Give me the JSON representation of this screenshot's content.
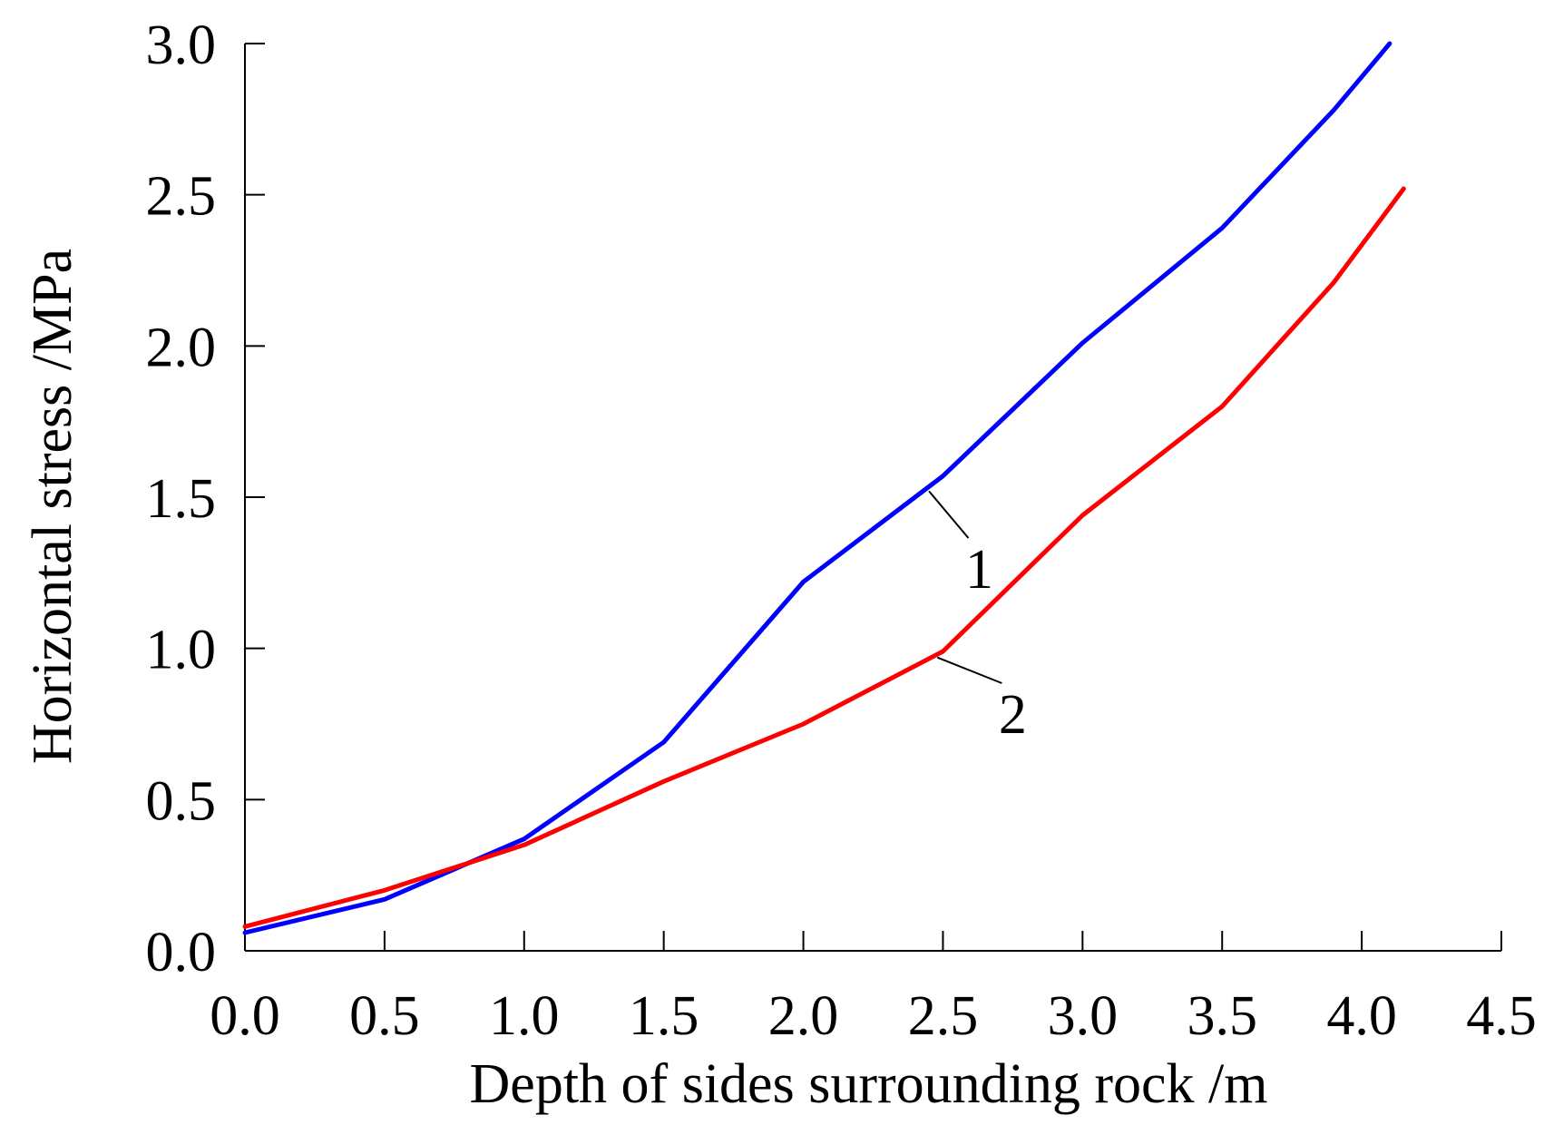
{
  "chart_data": {
    "type": "line",
    "xlabel": "Depth of sides surrounding rock /m",
    "ylabel": "Horizontal stress /MPa",
    "xlim": [
      0,
      4.5
    ],
    "ylim": [
      0,
      3.0
    ],
    "xticks": [
      "0.0",
      "0.5",
      "1.0",
      "1.5",
      "2.0",
      "2.5",
      "3.0",
      "3.5",
      "4.0",
      "4.5"
    ],
    "yticks": [
      "0.0",
      "0.5",
      "1.0",
      "1.5",
      "2.0",
      "2.5",
      "3.0"
    ],
    "grid": false,
    "series": [
      {
        "name": "1",
        "color": "#0000ff",
        "x": [
          0.0,
          0.5,
          1.0,
          1.5,
          2.0,
          2.5,
          3.0,
          3.5,
          3.9,
          4.1
        ],
        "y": [
          0.06,
          0.17,
          0.37,
          0.69,
          1.22,
          1.57,
          2.01,
          2.39,
          2.78,
          3.0
        ]
      },
      {
        "name": "2",
        "color": "#ff0000",
        "x": [
          0.0,
          0.5,
          1.0,
          1.5,
          2.0,
          2.5,
          3.0,
          3.5,
          3.9,
          4.15
        ],
        "y": [
          0.08,
          0.2,
          0.35,
          0.56,
          0.75,
          0.99,
          1.44,
          1.8,
          2.21,
          2.52
        ]
      }
    ]
  }
}
